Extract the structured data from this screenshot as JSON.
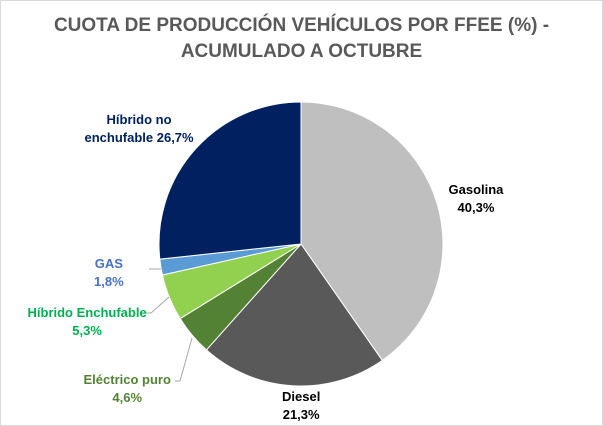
{
  "chart_data": {
    "type": "pie",
    "title_line1": "CUOTA DE PRODUCCIÓN VEHÍCULOS POR FFEE (%)  -",
    "title_line2": "ACUMULADO A OCTUBRE",
    "start": "12 o'clock, clockwise",
    "slices": [
      {
        "name": "Gasolina",
        "value": 40.3,
        "label": "40,3%",
        "color": "#bfbfbf",
        "label_color": "#000000"
      },
      {
        "name": "Diesel",
        "value": 21.3,
        "label": "21,3%",
        "color": "#595959",
        "label_color": "#000000"
      },
      {
        "name": "Eléctrico puro",
        "value": 4.6,
        "label": "4,6%",
        "color": "#548235",
        "label_color": "#548235"
      },
      {
        "name": "Híbrido Enchufable",
        "value": 5.3,
        "label": "5,3%",
        "color": "#92d050",
        "label_color": "#00b050"
      },
      {
        "name": "GAS",
        "value": 1.8,
        "label": "1,8%",
        "color": "#5b9bd5",
        "label_color": "#4472c4"
      },
      {
        "name": "Híbrido no enchufable",
        "value": 26.7,
        "label": "26,7%",
        "color": "#002060",
        "label_color": "#002060"
      }
    ]
  }
}
